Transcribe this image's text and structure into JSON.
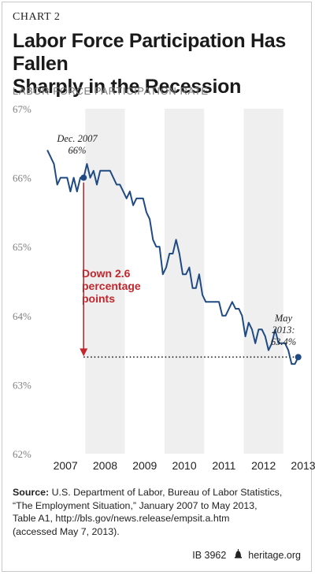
{
  "header": {
    "chart_label": "CHART 2",
    "title_line1": "Labor Force Participation Has Fallen",
    "title_line2": "Sharply in the Recession",
    "subtitle": "LABOR FORCE PARTICIPATION RATE"
  },
  "footer": {
    "source_label": "Source:",
    "source_line1": "U.S. Department of Labor, Bureau of Labor Statistics,",
    "source_line2": "“The Employment Situation,” January 2007 to May 2013,",
    "source_line3": "Table A1, http://bls.gov/news.release/empsit.a.htm",
    "source_line4": "(accessed May 7, 2013).",
    "ib_number": "IB 3962",
    "site": "heritage.org"
  },
  "colors": {
    "line": "#1f4a84",
    "arrow": "#c1272d",
    "band": "#efefef",
    "axis_text": "#808080"
  },
  "chart_data": {
    "type": "line",
    "ylim": [
      62,
      67
    ],
    "y_ticks": [
      62,
      63,
      64,
      65,
      66,
      67
    ],
    "y_tick_labels": [
      "62%",
      "63%",
      "64%",
      "65%",
      "66%",
      "67%"
    ],
    "x_tick_labels": [
      "2007",
      "2008",
      "2009",
      "2010",
      "2011",
      "2012",
      "2013"
    ],
    "grid": false,
    "series": [
      {
        "start": "Jan 2007",
        "values": [
          66.4,
          66.3,
          66.2,
          65.9,
          66.0,
          66.0,
          66.0,
          65.8,
          66.0,
          65.8,
          66.0,
          66.0,
          66.2,
          66.0,
          66.1,
          65.9,
          66.1,
          66.1,
          66.1,
          66.1,
          66.0,
          65.9,
          65.9,
          65.8,
          65.7,
          65.8,
          65.6,
          65.7,
          65.7,
          65.7,
          65.5,
          65.4,
          65.1,
          65.0,
          65.0,
          64.6,
          64.7,
          64.9,
          64.9,
          65.1,
          64.9,
          64.6,
          64.6,
          64.7,
          64.4,
          64.4,
          64.6,
          64.3,
          64.2,
          64.2,
          64.2,
          64.2,
          64.2,
          64.0,
          64.0,
          64.1,
          64.2,
          64.1,
          64.1,
          64.0,
          63.7,
          63.9,
          63.8,
          63.6,
          63.8,
          63.8,
          63.7,
          63.5,
          63.6,
          63.8,
          63.6,
          63.6,
          63.6,
          63.5,
          63.3,
          63.3,
          63.4
        ]
      }
    ],
    "annotations": {
      "start_label_line1": "Dec. 2007",
      "start_label_line2": "66%",
      "start_value": 66.0,
      "end_label_line1": "May",
      "end_label_line2": "2013:",
      "end_label_line3": "63.4%",
      "end_value": 63.4,
      "drop_line1": "Down 2.6",
      "drop_line2": "percentage",
      "drop_line3": "points"
    }
  }
}
